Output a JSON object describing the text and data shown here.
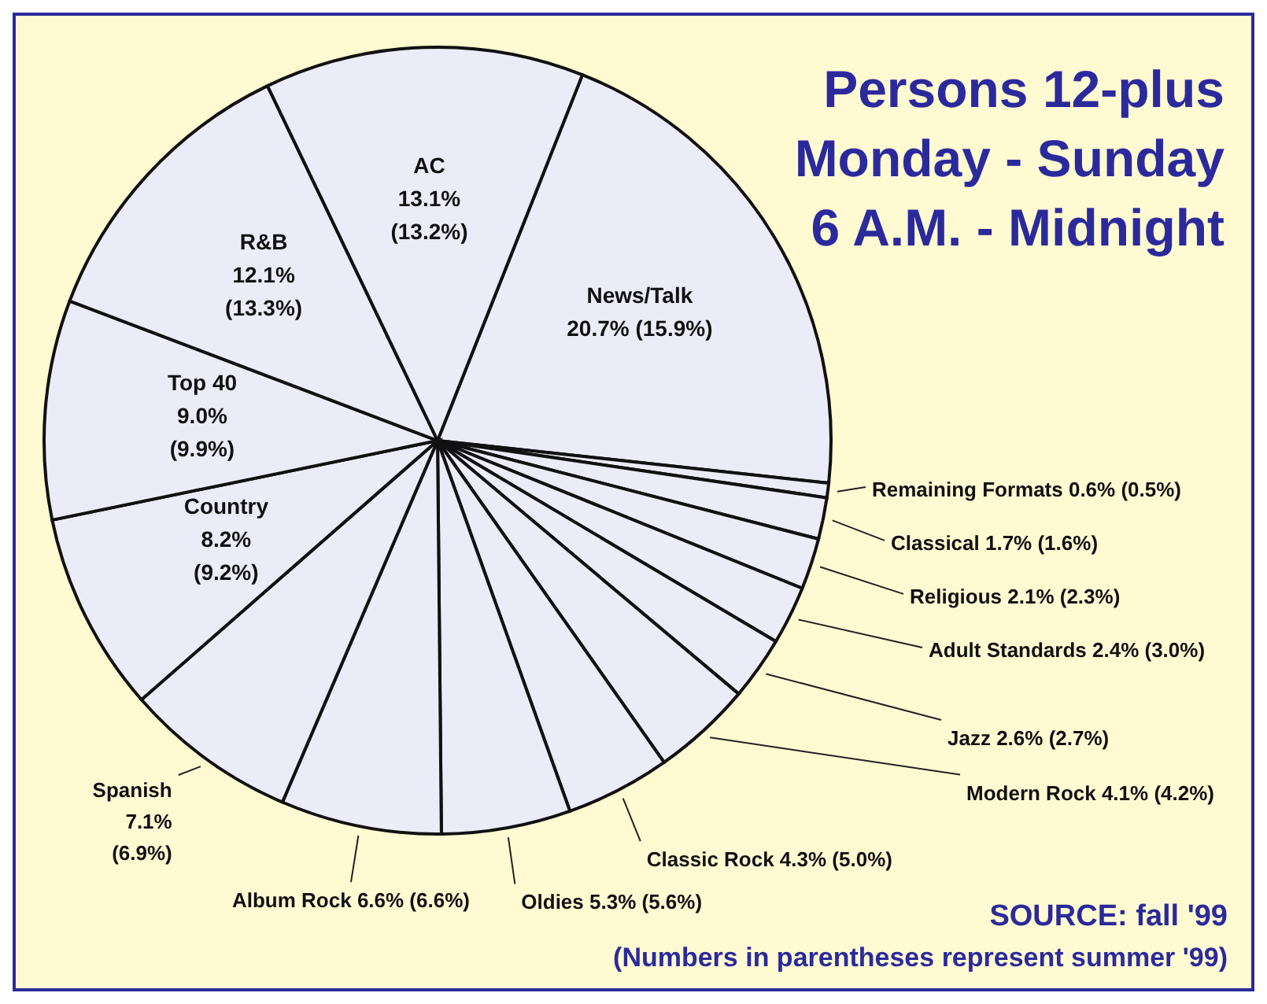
{
  "chart_data": {
    "type": "pie",
    "title": "Persons 12-plus\nMonday - Sunday\n6 A.M. - Midnight",
    "categories": [
      "News/Talk",
      "Remaining Formats",
      "Classical",
      "Religious",
      "Adult Standards",
      "Jazz",
      "Modern Rock",
      "Classic Rock",
      "Oldies",
      "Album Rock",
      "Spanish",
      "Country",
      "Top 40",
      "R&B",
      "AC"
    ],
    "values": [
      20.7,
      0.6,
      1.7,
      2.1,
      2.4,
      2.6,
      4.1,
      4.3,
      5.3,
      6.6,
      7.1,
      8.2,
      9.0,
      12.1,
      13.1
    ],
    "value_labels": [
      "20.7% (15.9%)",
      "0.6% (0.5%)",
      "1.7% (1.6%)",
      "2.1% (2.3%)",
      "2.4% (3.0%)",
      "2.6% (2.7%)",
      "4.1% (4.2%)",
      "4.3% (5.0%)",
      "5.3% (5.6%)",
      "6.6% (6.6%)",
      "7.1% (6.9%)",
      "8.2% (9.2%)",
      "9.0% (9.9%)",
      "12.1% (13.3%)",
      "13.1% (13.2%)"
    ],
    "colors": [
      "#ecebf8",
      "#ecebf8",
      "#ecebf8",
      "#ecebf8",
      "#ecebf8",
      "#ecebf8",
      "#ecebf8",
      "#ecebf8",
      "#ecebf8",
      "#ecebf8",
      "#ecebf8",
      "#ecebf8",
      "#ecebf8",
      "#ecebf8",
      "#ecebf8"
    ],
    "annotations": [
      "SOURCE: fall '99",
      "(Numbers in parentheses represent summer '99)"
    ]
  }
}
